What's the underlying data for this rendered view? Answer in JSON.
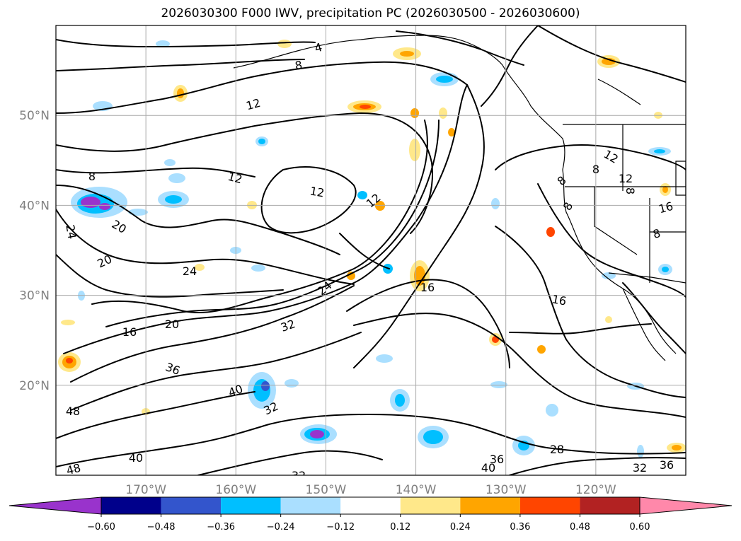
{
  "title": "2026030300 F000 IWV, precipitation PC (2026030500 - 2026030600)",
  "map": {
    "lon_range": [
      -180,
      -110
    ],
    "lat_range": [
      10,
      60
    ],
    "gridlines": true,
    "lon_ticks": [
      "170°W",
      "160°W",
      "150°W",
      "140°W",
      "130°W",
      "120°W"
    ],
    "lat_ticks": [
      "50°N",
      "40°N",
      "30°N",
      "20°N"
    ],
    "contour_labels": [
      {
        "text": "4"
      },
      {
        "text": "8"
      },
      {
        "text": "12"
      },
      {
        "text": "8"
      },
      {
        "text": "12"
      },
      {
        "text": "12"
      },
      {
        "text": "12"
      },
      {
        "text": "20"
      },
      {
        "text": "24"
      },
      {
        "text": "20"
      },
      {
        "text": "24"
      },
      {
        "text": "16"
      },
      {
        "text": "20"
      },
      {
        "text": "32"
      },
      {
        "text": "36"
      },
      {
        "text": "24"
      },
      {
        "text": "40"
      },
      {
        "text": "32"
      },
      {
        "text": "48"
      },
      {
        "text": "40"
      },
      {
        "text": "16"
      },
      {
        "text": "16"
      },
      {
        "text": "8"
      },
      {
        "text": "8"
      },
      {
        "text": "12"
      },
      {
        "text": "8"
      },
      {
        "text": "12"
      },
      {
        "text": "8"
      },
      {
        "text": "16"
      },
      {
        "text": "8"
      },
      {
        "text": "28"
      },
      {
        "text": "36"
      },
      {
        "text": "40"
      },
      {
        "text": "32"
      },
      {
        "text": "36"
      },
      {
        "text": "32"
      },
      {
        "text": "48"
      }
    ]
  },
  "colorbar": {
    "extend": "both",
    "colors": [
      "#9933cc",
      "#00008b",
      "#3355cc",
      "#00bfff",
      "#aadfff",
      "#ffffff",
      "#ffe88a",
      "#ffa500",
      "#ff4500",
      "#b22222",
      "#ff88aa"
    ],
    "tick_labels": [
      "−0.60",
      "−0.48",
      "−0.36",
      "−0.24",
      "−0.12",
      "0.12",
      "0.24",
      "0.36",
      "0.48",
      "0.60"
    ]
  }
}
